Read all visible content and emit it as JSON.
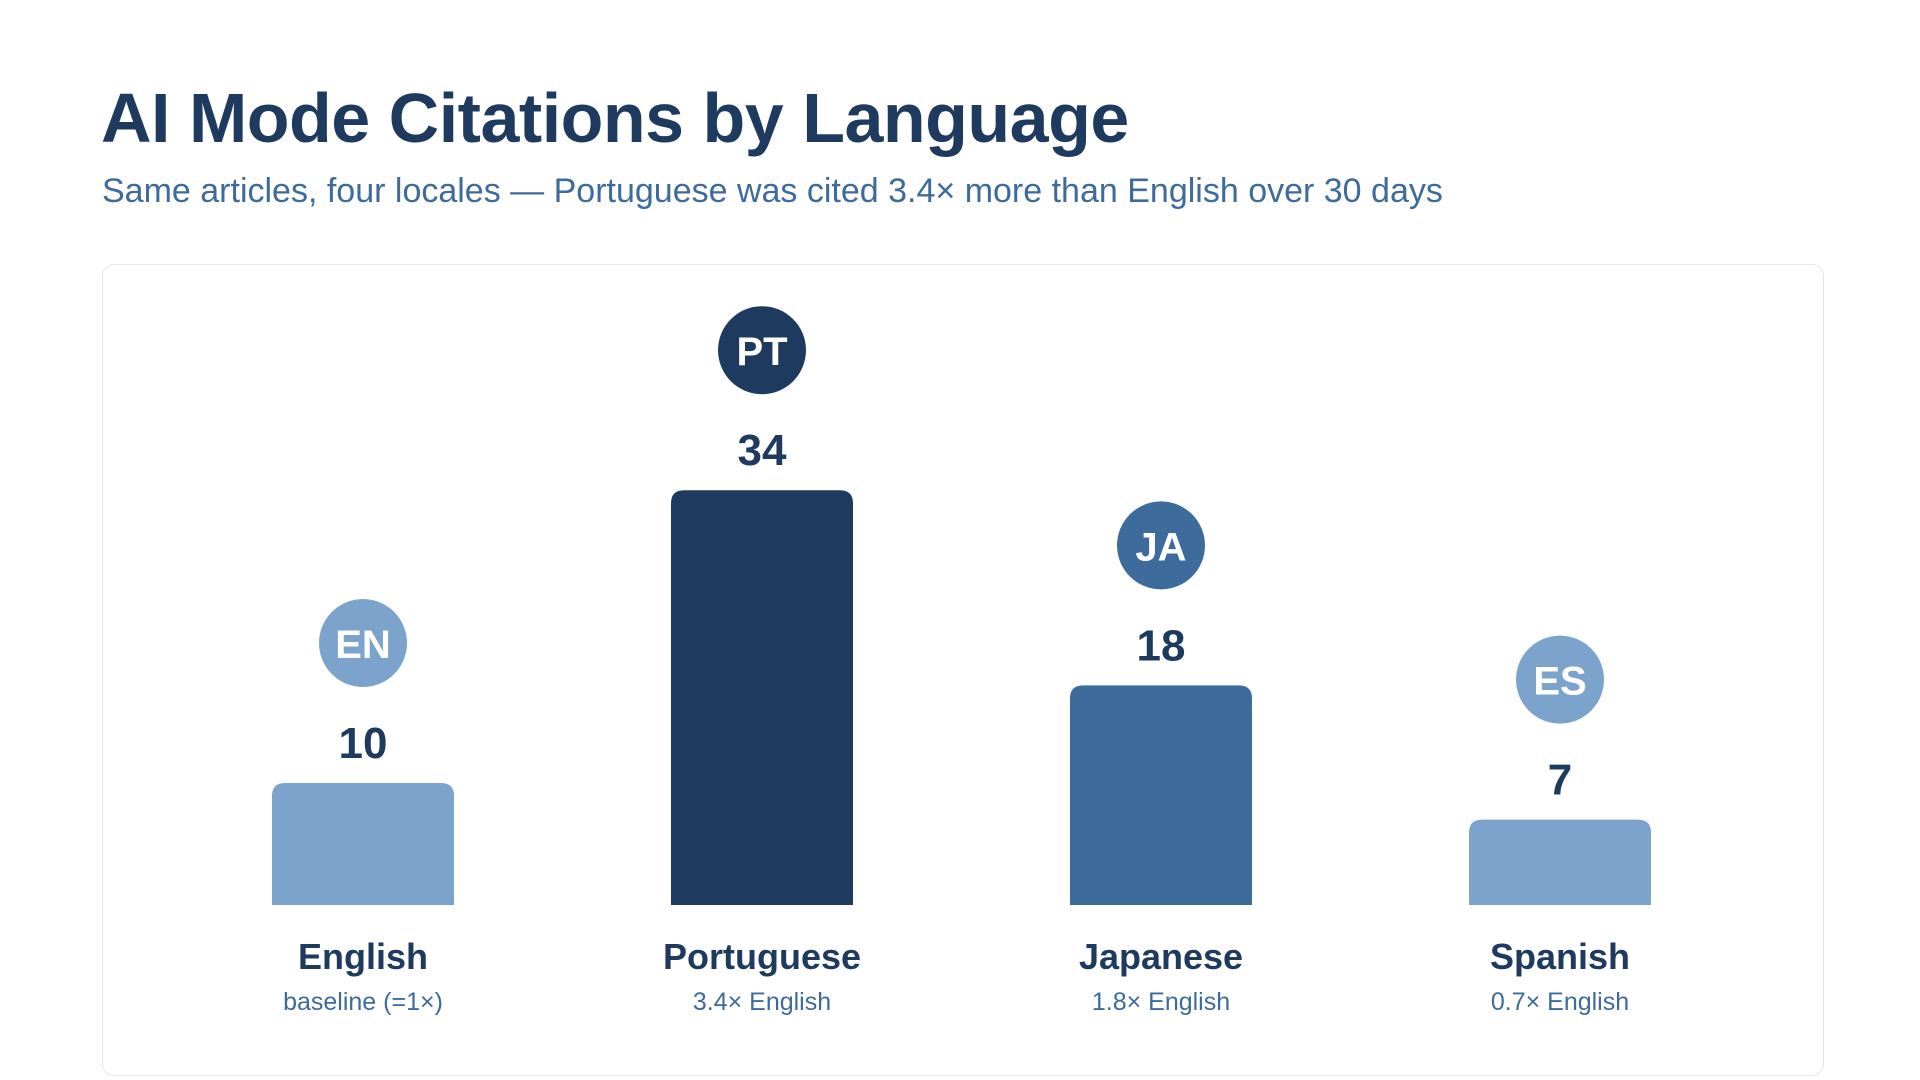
{
  "header": {
    "title": "AI Mode Citations by Language",
    "subtitle": "Same articles, four locales — Portuguese was cited 3.4× more than English over 30 days"
  },
  "colors": {
    "dark": "#1f3a5f",
    "mid": "#3d6b9b",
    "light": "#7ba3cc",
    "text_dark": "#1f3a5f",
    "text_sub": "#3d6b9b"
  },
  "chart_data": {
    "type": "bar",
    "title": "AI Mode Citations by Language",
    "subtitle": "Same articles, four locales — Portuguese was cited 3.4× more than English over 30 days",
    "xlabel": "",
    "ylabel": "",
    "ylim": [
      0,
      34
    ],
    "grid": false,
    "legend": "none",
    "categories": [
      "English",
      "Portuguese",
      "Japanese",
      "Spanish"
    ],
    "values": [
      10,
      34,
      18,
      7
    ],
    "codes": [
      "EN",
      "PT",
      "JA",
      "ES"
    ],
    "sublabels": [
      "baseline (=1×)",
      "3.4× English",
      "1.8× English",
      "0.7× English"
    ],
    "bar_colors": [
      "#7ba3cc",
      "#1f3a5f",
      "#3d6b9b",
      "#7ba3cc"
    ]
  }
}
